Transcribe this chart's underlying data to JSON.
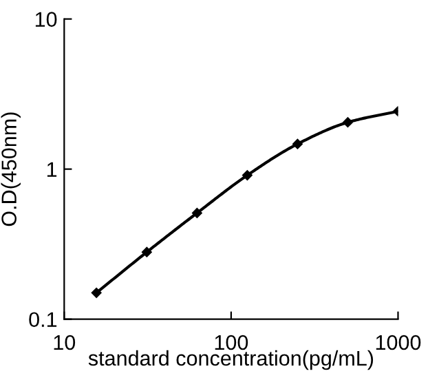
{
  "chart_data": {
    "type": "line",
    "xlabel": "standard concentration(pg/mL)",
    "ylabel": "O.D(450nm)",
    "x": [
      15.6,
      31.25,
      62.5,
      125,
      250,
      500,
      1000
    ],
    "series": [
      {
        "color": "#000000",
        "values": [
          0.15,
          0.28,
          0.51,
          0.91,
          1.47,
          2.05,
          2.43
        ]
      }
    ],
    "log": "xy",
    "xlim": [
      10,
      1000
    ],
    "ylim": [
      0.1,
      10
    ],
    "xticks": [
      10,
      100,
      1000
    ],
    "yticks": [
      0.1,
      1,
      10
    ],
    "grid": false,
    "legend": false,
    "marker": "diamond",
    "line_style": "solid"
  }
}
